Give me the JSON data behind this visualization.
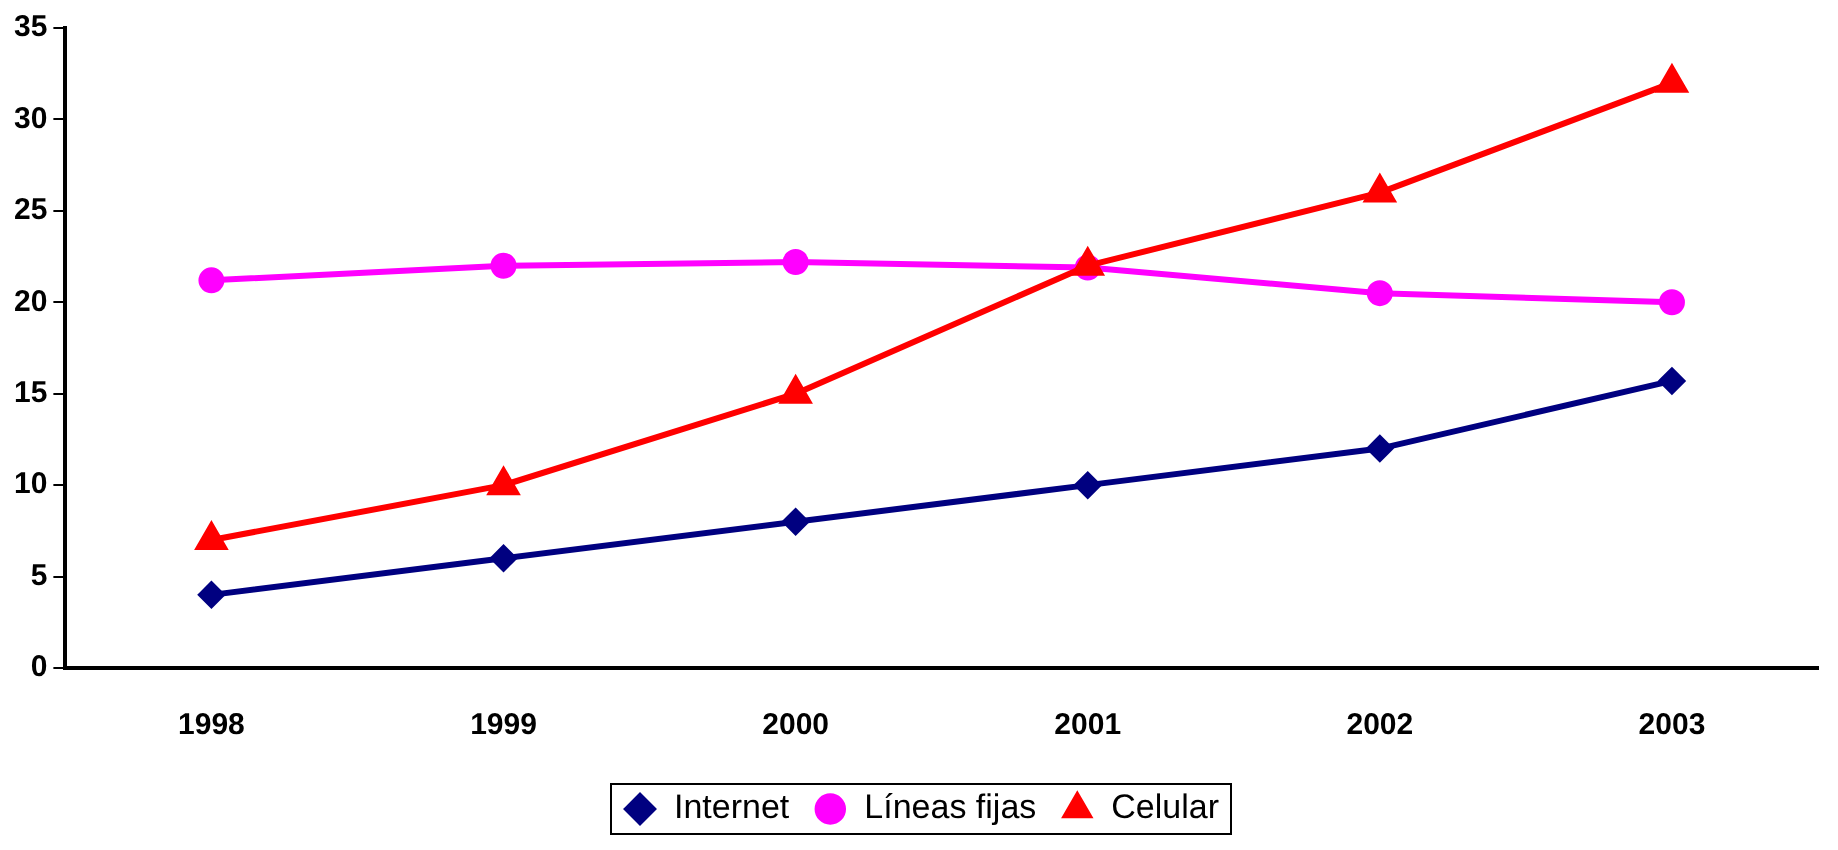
{
  "chart_data": {
    "type": "line",
    "categories": [
      "1998",
      "1999",
      "2000",
      "2001",
      "2002",
      "2003"
    ],
    "series": [
      {
        "name": "Internet",
        "color": "#000080",
        "marker": "diamond",
        "values": [
          4,
          6,
          8,
          10,
          12,
          15.7
        ]
      },
      {
        "name": "Líneas fijas",
        "color": "#ff00ff",
        "marker": "circle",
        "values": [
          21.2,
          22,
          22.2,
          21.9,
          20.5,
          20
        ]
      },
      {
        "name": "Celular",
        "color": "#ff0000",
        "marker": "triangle",
        "values": [
          7,
          10,
          15,
          22,
          26,
          32
        ]
      }
    ],
    "ylim": [
      0,
      35
    ],
    "yticks": [
      0,
      5,
      10,
      15,
      20,
      25,
      30,
      35
    ],
    "grid": false,
    "legend": "bottom"
  }
}
